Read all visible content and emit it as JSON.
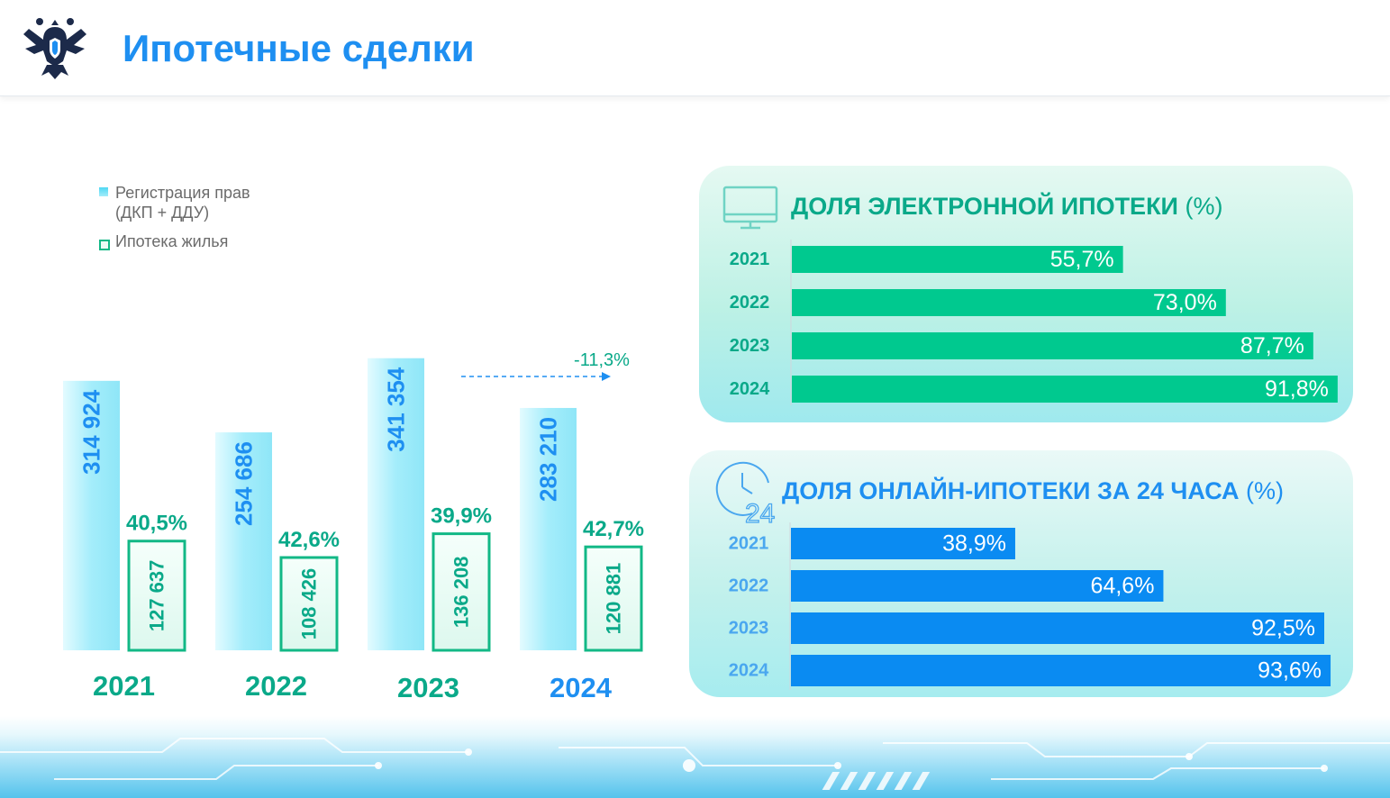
{
  "header": {
    "title": "Ипотечные сделки",
    "logo_icon": "double-headed-eagle-emblem-icon"
  },
  "colors": {
    "brand_blue": "#1e8ff1",
    "green": "#0aa989",
    "bar_green": "#00c98f",
    "bar_blue": "#0a8bf2",
    "bar_cyan": "#a8eefb"
  },
  "legend": {
    "items": [
      {
        "line1": "Регистрация прав",
        "line2": "(ДКП + ДДУ)"
      },
      {
        "line1": "Ипотека жилья",
        "line2": ""
      }
    ]
  },
  "chart_data": [
    {
      "type": "bar",
      "categories": [
        "2021",
        "2022",
        "2023",
        "2024"
      ],
      "series": [
        {
          "name": "Регистрация прав (ДКП + ДДУ)",
          "values": [
            314924,
            254686,
            341354,
            283210
          ],
          "labels": [
            "314 924",
            "254 686",
            "341 354",
            "283 210"
          ]
        },
        {
          "name": "Ипотека жилья",
          "values": [
            127637,
            108426,
            136208,
            120881
          ],
          "labels": [
            "127 637",
            "108 426",
            "136 208",
            "120 881"
          ]
        }
      ],
      "share_labels": [
        "40,5%",
        "42,6%",
        "39,9%",
        "42,7%"
      ],
      "annotation": "-11,3%"
    },
    {
      "type": "bar",
      "orientation": "horizontal",
      "title": "ДОЛЯ ЭЛЕКТРОННОЙ ИПОТЕКИ",
      "unit": "(%)",
      "categories": [
        "2021",
        "2022",
        "2023",
        "2024"
      ],
      "values": [
        55.7,
        73.0,
        87.7,
        91.8
      ],
      "labels": [
        "55,7%",
        "73,0%",
        "87,7%",
        "91,8%"
      ],
      "icon": "monitor-icon"
    },
    {
      "type": "bar",
      "orientation": "horizontal",
      "title": "ДОЛЯ ОНЛАЙН-ИПОТЕКИ ЗА 24 ЧАСА",
      "unit": "(%)",
      "categories": [
        "2021",
        "2022",
        "2023",
        "2024"
      ],
      "values": [
        38.9,
        64.6,
        92.5,
        93.6
      ],
      "labels": [
        "38,9%",
        "64,6%",
        "92,5%",
        "93,6%"
      ],
      "icon": "clock-24-icon"
    }
  ]
}
